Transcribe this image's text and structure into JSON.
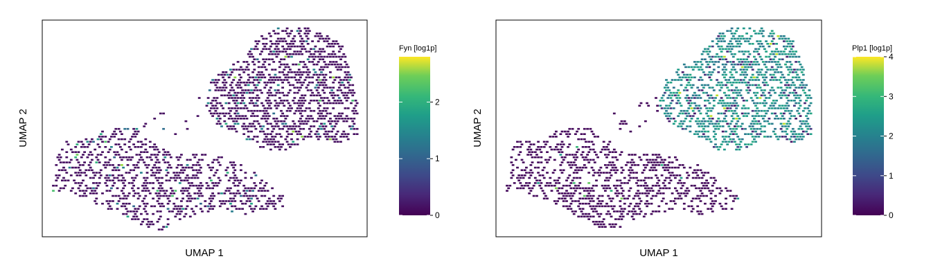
{
  "chart_data": [
    {
      "type": "scatter",
      "xlabel": "UMAP 1",
      "ylabel": "UMAP 2",
      "colorbar": {
        "title": "Fyn [log1p]",
        "ticks": [
          0,
          1,
          2
        ],
        "range": [
          0,
          2.8
        ],
        "colormap": "viridis"
      },
      "point_color_value": 0.1,
      "highlight_values": [
        1.2,
        2.7
      ],
      "grid": false
    },
    {
      "type": "scatter",
      "xlabel": "UMAP 1",
      "ylabel": "UMAP 2",
      "colorbar": {
        "title": "Plp1 [log1p]",
        "ticks": [
          0,
          1,
          2,
          3,
          4
        ],
        "range": [
          0,
          4
        ],
        "colormap": "viridis"
      },
      "point_color_value_lower_cluster": 0.1,
      "point_color_value_upper_cluster": 2.0,
      "highlight_values": [
        3.6
      ],
      "grid": false
    }
  ],
  "colors": {
    "viridis_low": "#440154",
    "viridis_mid": "#21908d",
    "viridis_high": "#fde725",
    "frame": "#000000"
  }
}
